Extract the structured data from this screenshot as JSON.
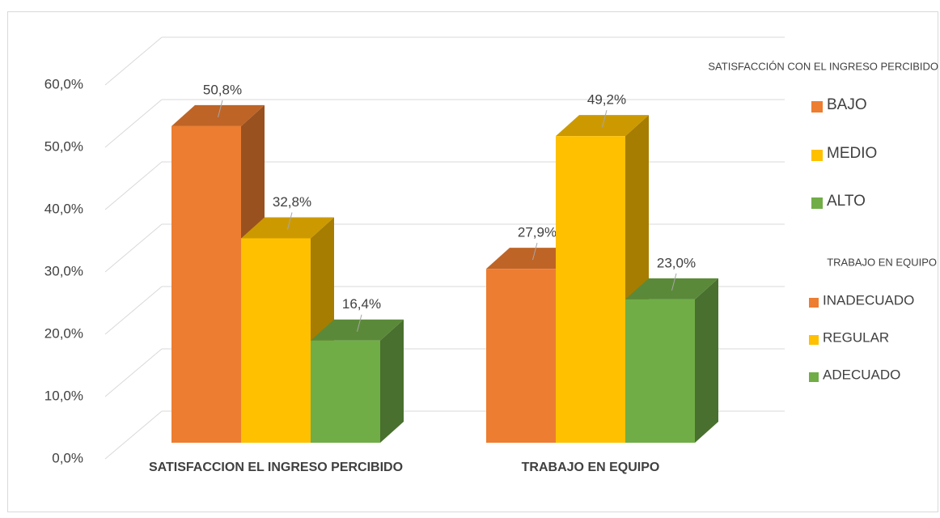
{
  "chart_data": {
    "type": "bar3d",
    "categories": [
      "SATISFACCION EL INGRESO PERCIBIDO",
      "TRABAJO EN EQUIPO"
    ],
    "series": [
      {
        "color": "#ED7D31",
        "values": [
          50.8,
          27.9
        ],
        "value_labels": [
          "50,8%",
          "27,9%"
        ]
      },
      {
        "color": "#FFC000",
        "values": [
          32.8,
          49.2
        ],
        "value_labels": [
          "32,8%",
          "49,2%"
        ]
      },
      {
        "color": "#70AD47",
        "values": [
          16.4,
          23.0
        ],
        "value_labels": [
          "16,4%",
          "23,0%"
        ]
      }
    ],
    "legend_groups": [
      {
        "title": "SATISFACCIÓN CON EL INGRESO PERCIBIDO",
        "entries": [
          "BAJO",
          "MEDIO",
          "ALTO"
        ]
      },
      {
        "title": "TRABAJO EN EQUIPO",
        "entries": [
          "INADECUADO",
          "REGULAR",
          "ADECUADO"
        ]
      }
    ],
    "ylim": [
      0,
      60
    ],
    "yticks": [
      {
        "value": 0,
        "label": "0,0%"
      },
      {
        "value": 10,
        "label": "10,0%"
      },
      {
        "value": 20,
        "label": "20,0%"
      },
      {
        "value": 30,
        "label": "30,0%"
      },
      {
        "value": 40,
        "label": "40,0%"
      },
      {
        "value": 50,
        "label": "50,0%"
      },
      {
        "value": 60,
        "label": "60,0%"
      }
    ],
    "grid": true
  }
}
